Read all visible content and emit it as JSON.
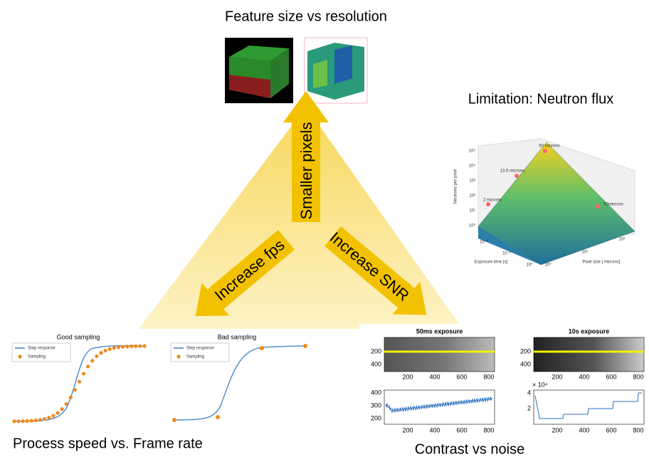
{
  "header": {
    "title": "Feature size vs resolution"
  },
  "arrows": {
    "up": "Smaller pixels",
    "left": "Increase fps",
    "right": "Increase SNR"
  },
  "flux_panel": {
    "title": "Limitation: Neutron flux",
    "z_label": "Neutrons per pixel",
    "x_label": "Exposure time [s]",
    "y_label": "Pixel size [ microns]",
    "point_labels": [
      "50 microns",
      "13.5 microns",
      "2 microns",
      "50microns"
    ],
    "z_ticks": [
      "10⁵",
      "10⁴",
      "10³",
      "10²",
      "10¹",
      "10⁰"
    ],
    "x_ticks": [
      "10⁰",
      "10⁻¹",
      "10⁻²"
    ],
    "y_ticks": [
      "10⁰",
      "10¹",
      "10²"
    ]
  },
  "sampling_panel": {
    "caption": "Process speed vs. Frame rate",
    "plots": [
      {
        "title": "Good sampling",
        "legend": [
          "Step response",
          "Sampling"
        ]
      },
      {
        "title": "Bad sampling",
        "legend": [
          "Step response",
          "Sampling"
        ]
      }
    ]
  },
  "noise_panel": {
    "caption": "Contrast vs noise",
    "plots": [
      {
        "title": "50ms exposure",
        "image_yticks": [
          "200",
          "400"
        ],
        "xticks": [
          "200",
          "400",
          "600",
          "800"
        ],
        "line_yticks": [
          "400",
          "300",
          "200"
        ],
        "line_exponent": ""
      },
      {
        "title": "10s exposure",
        "image_yticks": [
          "200",
          "400"
        ],
        "xticks": [
          "200",
          "400",
          "600",
          "800"
        ],
        "line_yticks": [
          "4",
          "2"
        ],
        "line_exponent": "× 10⁴"
      }
    ]
  }
}
